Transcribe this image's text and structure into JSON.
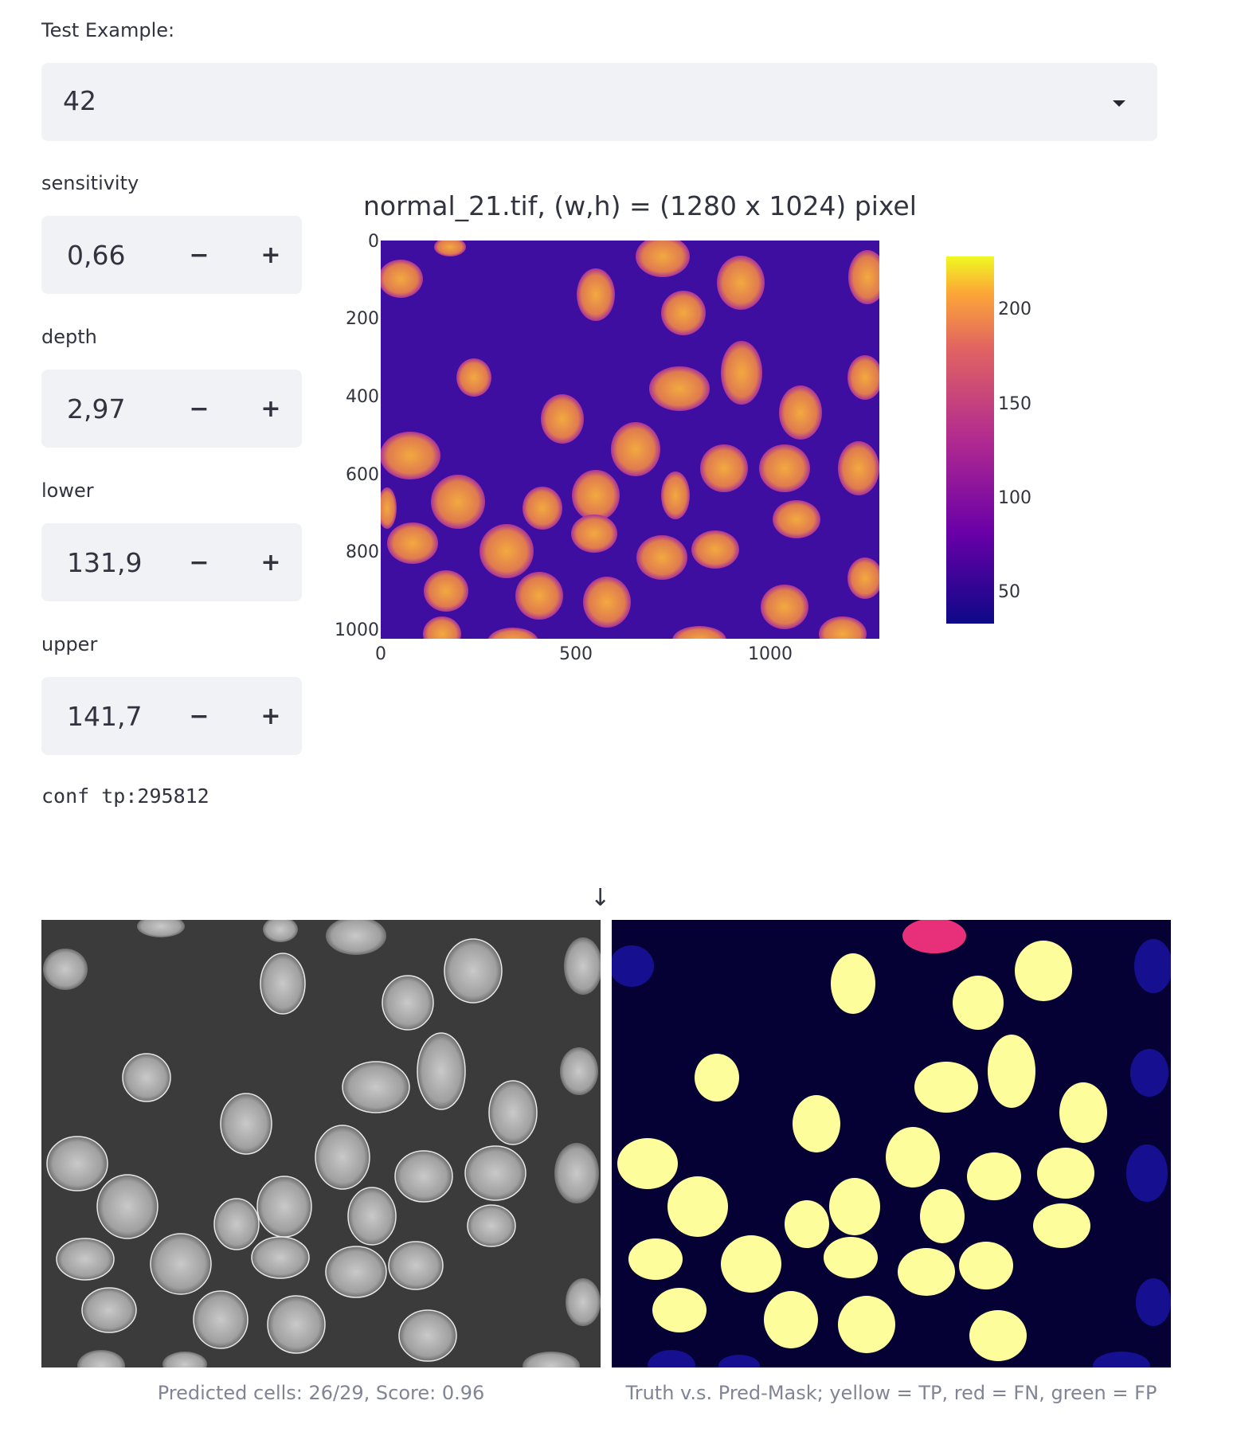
{
  "select": {
    "label": "Test Example:",
    "value": "42"
  },
  "controls": [
    {
      "label": "sensitivity",
      "value": "0,66",
      "minus": "−",
      "plus": "+"
    },
    {
      "label": "depth",
      "value": "2,97",
      "minus": "−",
      "plus": "+"
    },
    {
      "label": "lower",
      "value": "131,9",
      "minus": "−",
      "plus": "+"
    },
    {
      "label": "upper",
      "value": "141,7",
      "minus": "−",
      "plus": "+"
    }
  ],
  "conf": "conf tp:295812",
  "plot": {
    "title": "normal_21.tif, (w,h) = (1280 x 1024) pixel",
    "y_ticks": [
      "0",
      "200",
      "400",
      "600",
      "800",
      "1000"
    ],
    "x_ticks": [
      "0",
      "500",
      "1000"
    ],
    "colorbar_ticks": [
      "200",
      "150",
      "100",
      "50"
    ]
  },
  "arrow": "↓",
  "images": {
    "left_caption": "Predicted cells: 26/29, Score: 0.96",
    "right_caption": "Truth v.s. Pred-Mask; yellow = TP, red = FN, green = FP"
  },
  "colors": {
    "input_bg": "#f0f2f6",
    "text": "#31333f",
    "caption": "#808495",
    "image_bg": "#190a8a"
  }
}
